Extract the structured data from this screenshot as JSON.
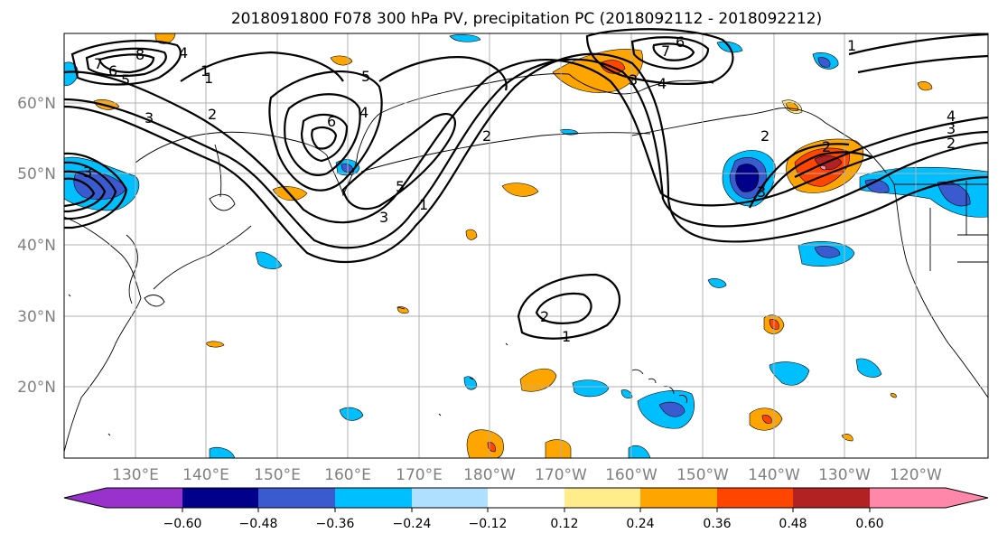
{
  "title": "2018091800 F078 300 hPa PV, precipitation PC (2018092112 - 2018092212)",
  "lat_labels": [
    "60°N",
    "50°N",
    "40°N",
    "30°N",
    "20°N"
  ],
  "lon_labels": [
    "130°E",
    "140°E",
    "150°E",
    "160°E",
    "170°E",
    "180°W",
    "170°W",
    "160°W",
    "150°W",
    "140°W",
    "130°W",
    "120°W"
  ],
  "colorbar": {
    "colors": [
      "#9932cc",
      "#00008b",
      "#3a5bd0",
      "#00bfff",
      "#b0e0ff",
      "#ffffff",
      "#ffec8b",
      "#ffa500",
      "#ff4500",
      "#b22222",
      "#ff88aa"
    ],
    "tick_labels": [
      "−0.60",
      "−0.48",
      "−0.36",
      "−0.24",
      "−0.12",
      "0.12",
      "0.24",
      "0.36",
      "0.48",
      "0.60"
    ]
  },
  "contour_labels": [
    "7",
    "6",
    "5",
    "8",
    "4",
    "1",
    "3",
    "2",
    "5",
    "6",
    "4",
    "3",
    "5",
    "1",
    "2",
    "3",
    "2",
    "1",
    "7",
    "6",
    "3",
    "4",
    "2",
    "3",
    "1",
    "4",
    "3",
    "2",
    "2",
    "1"
  ]
}
